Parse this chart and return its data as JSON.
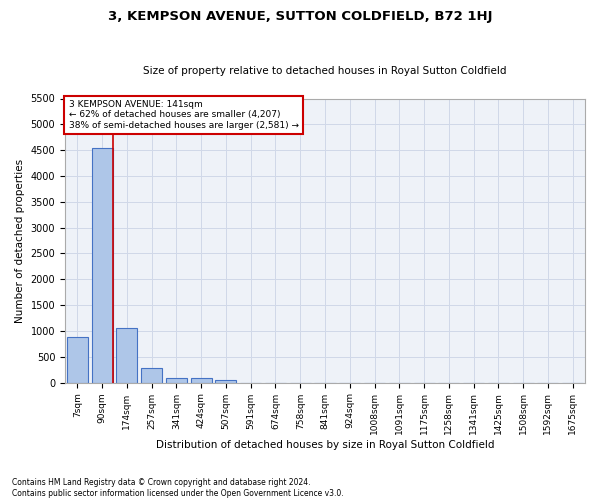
{
  "title": "3, KEMPSON AVENUE, SUTTON COLDFIELD, B72 1HJ",
  "subtitle": "Size of property relative to detached houses in Royal Sutton Coldfield",
  "xlabel": "Distribution of detached houses by size in Royal Sutton Coldfield",
  "ylabel": "Number of detached properties",
  "footnote1": "Contains HM Land Registry data © Crown copyright and database right 2024.",
  "footnote2": "Contains public sector information licensed under the Open Government Licence v3.0.",
  "bar_labels": [
    "7sqm",
    "90sqm",
    "174sqm",
    "257sqm",
    "341sqm",
    "424sqm",
    "507sqm",
    "591sqm",
    "674sqm",
    "758sqm",
    "841sqm",
    "924sqm",
    "1008sqm",
    "1091sqm",
    "1175sqm",
    "1258sqm",
    "1341sqm",
    "1425sqm",
    "1508sqm",
    "1592sqm",
    "1675sqm"
  ],
  "bar_values": [
    880,
    4540,
    1050,
    280,
    90,
    80,
    55,
    0,
    0,
    0,
    0,
    0,
    0,
    0,
    0,
    0,
    0,
    0,
    0,
    0,
    0
  ],
  "bar_color": "#aec6e8",
  "bar_edge_color": "#4472c4",
  "vline_color": "#cc0000",
  "ylim": [
    0,
    5500
  ],
  "yticks": [
    0,
    500,
    1000,
    1500,
    2000,
    2500,
    3000,
    3500,
    4000,
    4500,
    5000,
    5500
  ],
  "annotation_text": "3 KEMPSON AVENUE: 141sqm\n← 62% of detached houses are smaller (4,207)\n38% of semi-detached houses are larger (2,581) →",
  "annotation_box_color": "#ffffff",
  "annotation_border_color": "#cc0000",
  "grid_color": "#d0d8e8",
  "bg_color": "#eef2f8"
}
